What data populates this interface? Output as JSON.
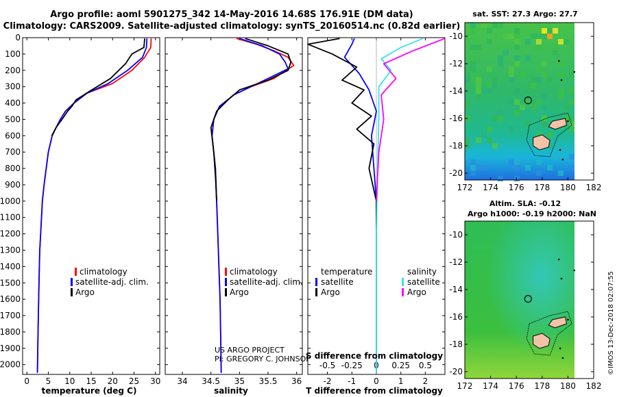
{
  "title": {
    "line1": "Argo profile: aoml 5901275_342 14-May-2016 14.68S 176.91E (DM data)",
    "line2": "Climatology: CARS2009. Satellite-adjusted climatology: synTS_20160514.nc (0.82d earlier)"
  },
  "colors": {
    "climatology": "#ff0000",
    "satellite": "#0000ff",
    "argo": "#000000",
    "sat_salinity": "#33e5ee",
    "argo_salinity": "#ff00ff"
  },
  "pressure_ticks": [
    "0",
    "100",
    "200",
    "300",
    "400",
    "500",
    "600",
    "700",
    "800",
    "900",
    "1000",
    "1100",
    "1200",
    "1300",
    "1400",
    "1500",
    "1600",
    "1700",
    "1800",
    "1900",
    "2000"
  ],
  "legend": {
    "climatology": "climatology",
    "satellite": "satellite-adj. clim.",
    "argo": "Argo",
    "diff_temperature": "temperature",
    "diff_salinity": "salinity",
    "diff_satellite": "satellite",
    "diff_argo": "Argo"
  },
  "notes": {
    "project": "US ARGO PROJECT",
    "pi": "PI: GREGORY C. JOHNSON",
    "credit": "©IMOS 13-Dec-2018 02:07:55"
  },
  "chart_data": [
    {
      "type": "line",
      "name": "temperature",
      "title": "",
      "xlabel": "temperature (deg C)",
      "ylabel": "pressure",
      "xlim": [
        -1,
        31
      ],
      "ylim": [
        2060,
        0
      ],
      "xticks": [
        0,
        5,
        10,
        15,
        20,
        25,
        30
      ],
      "series": [
        {
          "name": "climatology",
          "color": "#ff0000",
          "x": [
            29.0,
            28.9,
            27.5,
            24.5,
            20.0,
            14.0,
            11.0,
            9.0,
            7.8,
            6.8,
            5.9,
            5.0,
            4.5,
            4.0,
            3.6,
            3.2,
            3.0,
            2.9,
            2.75,
            2.6,
            2.5,
            2.45
          ],
          "y": [
            5,
            60,
            120,
            200,
            280,
            340,
            400,
            450,
            500,
            550,
            600,
            700,
            800,
            900,
            1000,
            1200,
            1300,
            1400,
            1600,
            1800,
            1950,
            2050
          ]
        },
        {
          "name": "satellite-adj. clim.",
          "color": "#0000ff",
          "x": [
            28.0,
            27.9,
            27.0,
            23.5,
            19.0,
            14.0,
            11.0,
            9.0,
            7.8,
            6.8,
            5.9,
            5.0,
            4.5,
            4.0,
            3.6,
            3.2,
            3.0,
            2.9,
            2.75,
            2.6,
            2.5,
            2.45
          ],
          "y": [
            5,
            60,
            120,
            200,
            280,
            340,
            400,
            450,
            500,
            550,
            600,
            700,
            800,
            900,
            1000,
            1200,
            1300,
            1400,
            1600,
            1800,
            1950,
            2050
          ]
        },
        {
          "name": "Argo",
          "color": "#000000",
          "x": [
            27.5,
            27.3,
            24.5,
            23.0,
            19.5,
            14.5,
            11.5,
            10.5,
            9.5,
            8.2,
            6.8,
            5.8
          ],
          "y": [
            5,
            60,
            100,
            160,
            250,
            330,
            380,
            420,
            450,
            500,
            550,
            600
          ]
        }
      ]
    },
    {
      "type": "line",
      "name": "salinity",
      "title": "",
      "xlabel": "salinity",
      "ylabel": "pressure",
      "xlim": [
        33.7,
        36.1
      ],
      "ylim": [
        2060,
        0
      ],
      "xticks": [
        34,
        34.5,
        35,
        35.5,
        36
      ],
      "series": [
        {
          "name": "climatology",
          "color": "#ff0000",
          "x": [
            34.95,
            35.3,
            35.6,
            35.85,
            35.95,
            35.6,
            35.2,
            34.9,
            34.65,
            34.55,
            34.52,
            34.55,
            34.58,
            34.6,
            34.62,
            34.64,
            34.66,
            34.67,
            34.68
          ],
          "y": [
            5,
            40,
            80,
            120,
            170,
            250,
            300,
            350,
            420,
            500,
            600,
            700,
            800,
            1000,
            1200,
            1400,
            1600,
            1800,
            2050
          ]
        },
        {
          "name": "satellite-adj. clim.",
          "color": "#0000ff",
          "x": [
            35.0,
            35.4,
            35.7,
            35.8,
            35.85,
            35.5,
            35.2,
            34.9,
            34.65,
            34.55,
            34.52,
            34.55,
            34.58,
            34.6,
            34.62,
            34.64,
            34.66,
            34.67,
            34.68
          ],
          "y": [
            5,
            50,
            100,
            150,
            190,
            250,
            300,
            350,
            420,
            500,
            600,
            700,
            800,
            1000,
            1200,
            1400,
            1600,
            1800,
            2050
          ]
        },
        {
          "name": "Argo",
          "color": "#000000",
          "x": [
            35.1,
            35.5,
            35.85,
            35.9,
            35.85,
            35.5,
            35.0,
            34.8,
            34.6,
            34.5,
            34.55,
            34.58,
            34.6
          ],
          "y": [
            5,
            50,
            100,
            150,
            200,
            260,
            320,
            380,
            450,
            550,
            700,
            850,
            1000
          ]
        }
      ]
    },
    {
      "type": "line",
      "name": "difference",
      "title": "",
      "xlabel": "T difference from climatology",
      "xlabel2": "S difference from climatology",
      "ylabel": "pressure",
      "xlim": [
        -2.8,
        2.8
      ],
      "ylim": [
        2060,
        0
      ],
      "xticks": [
        -2,
        -1,
        0,
        1,
        2
      ],
      "sticks": [
        "-0.5",
        "-0.25",
        "0",
        "0.25",
        "0.5"
      ],
      "series": [
        {
          "name": "T satellite",
          "color": "#0000ff",
          "x": [
            -0.9,
            -1.0,
            -1.3,
            -0.7,
            -0.3,
            0.0,
            -0.2,
            -0.1,
            0.0,
            0.0
          ],
          "y": [
            5,
            40,
            120,
            220,
            320,
            450,
            600,
            800,
            1000,
            2050
          ]
        },
        {
          "name": "T Argo",
          "color": "#000000",
          "x": [
            -1.5,
            -2.8,
            -1.8,
            -0.8,
            -1.4,
            -0.5,
            -1.0,
            -0.2,
            -0.8,
            -0.1,
            -0.3,
            0.0,
            0.0
          ],
          "y": [
            5,
            40,
            100,
            180,
            260,
            320,
            400,
            480,
            560,
            650,
            800,
            1000,
            1150
          ]
        },
        {
          "name": "S satellite",
          "color": "#33e5ee",
          "x": [
            1.9,
            1.0,
            0.2,
            0.6,
            0.1,
            0.1,
            0.05,
            0.0,
            0.0
          ],
          "y": [
            5,
            60,
            130,
            200,
            300,
            500,
            800,
            1200,
            2050
          ]
        },
        {
          "name": "S Argo",
          "color": "#ff00ff",
          "x": [
            2.8,
            1.5,
            0.3,
            0.8,
            0.2,
            0.3,
            0.1,
            0.0
          ],
          "y": [
            5,
            80,
            160,
            250,
            350,
            500,
            700,
            1000
          ]
        }
      ]
    },
    {
      "type": "heatmap",
      "name": "sat-sst-map",
      "title": "sat. SST: 27.3 Argo: 27.7",
      "xlim": [
        172,
        182
      ],
      "ylim": [
        -20.5,
        -9
      ],
      "xticks": [
        172,
        174,
        176,
        178,
        180,
        182
      ],
      "yticks": [
        -10,
        -12,
        -14,
        -16,
        -18,
        -20
      ],
      "marker": {
        "lon": 176.91,
        "lat": -14.68
      }
    },
    {
      "type": "heatmap",
      "name": "sla-map",
      "title": "Altim. SLA: -0.12",
      "subtitle": "Argo h1000: -0.19 h2000: NaN",
      "xlim": [
        172,
        182
      ],
      "ylim": [
        -20.5,
        -9
      ],
      "xticks": [
        172,
        174,
        176,
        178,
        180,
        182
      ],
      "yticks": [
        -10,
        -12,
        -14,
        -16,
        -18,
        -20
      ],
      "marker": {
        "lon": 176.91,
        "lat": -14.68
      }
    }
  ]
}
